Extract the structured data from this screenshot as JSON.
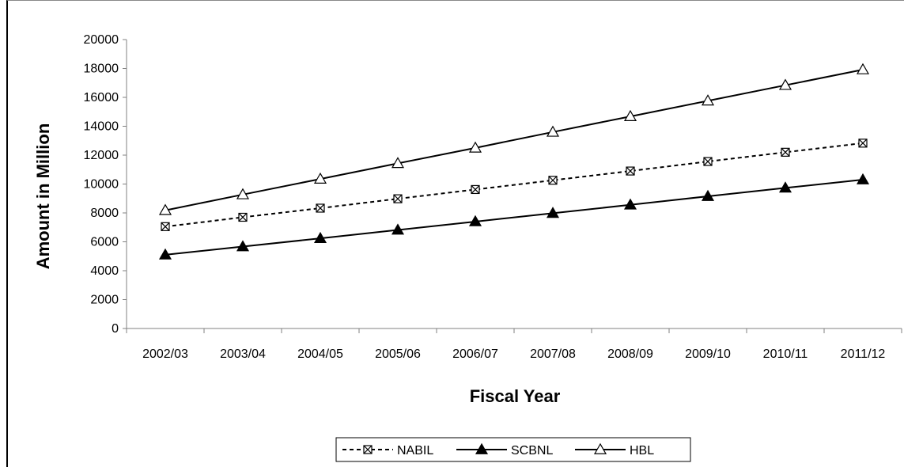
{
  "chart_data": {
    "type": "line",
    "xlabel": "Fiscal Year",
    "ylabel": "Amount in Million",
    "categories": [
      "2002/03",
      "2003/04",
      "2004/05",
      "2005/06",
      "2006/07",
      "2007/08",
      "2008/09",
      "2009/10",
      "2010/11",
      "2011/12"
    ],
    "ylim": [
      0,
      20000
    ],
    "yticks": [
      0,
      2000,
      4000,
      6000,
      8000,
      10000,
      12000,
      14000,
      16000,
      18000,
      20000
    ],
    "grid": false,
    "legend_position": "bottom",
    "series": [
      {
        "name": "NABIL",
        "style": "dashed",
        "marker": "x-square",
        "color": "#000000",
        "values": [
          7050,
          7700,
          8330,
          8980,
          9620,
          10260,
          10900,
          11560,
          12200,
          12830
        ]
      },
      {
        "name": "SCBNL",
        "style": "solid",
        "marker": "filled-triangle",
        "color": "#000000",
        "values": [
          5100,
          5670,
          6240,
          6820,
          7400,
          7980,
          8560,
          9150,
          9730,
          10300
        ]
      },
      {
        "name": "HBL",
        "style": "solid",
        "marker": "open-triangle",
        "color": "#000000",
        "values": [
          8180,
          9270,
          10350,
          11430,
          12500,
          13600,
          14680,
          15760,
          16840,
          17920
        ]
      }
    ]
  }
}
